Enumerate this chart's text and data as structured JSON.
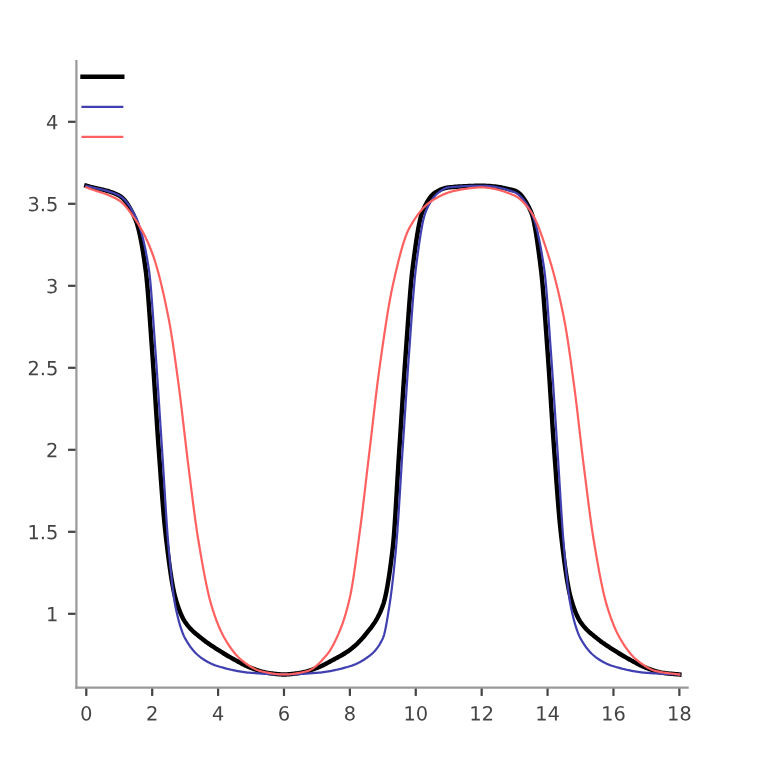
{
  "chart_data": {
    "type": "line",
    "grid": false,
    "marker": "none",
    "line_style": "solid",
    "xlim": [
      -0.3,
      18.25
    ],
    "ylim": [
      0.55,
      4.37
    ],
    "xticks": [
      0,
      2,
      4,
      6,
      8,
      10,
      12,
      14,
      16,
      18
    ],
    "yticks": [
      1,
      1.5,
      2,
      2.5,
      3,
      3.5,
      4
    ],
    "series": [
      {
        "color": "#000000",
        "x": [
          0,
          1,
          1.5,
          1.8,
          2.0,
          2.2,
          2.4,
          2.7,
          3,
          3.5,
          4,
          4.5,
          5,
          5.5,
          6,
          6.5,
          7,
          7.5,
          8,
          8.5,
          9,
          9.3,
          9.5,
          9.7,
          9.9,
          10.2,
          10.6,
          11,
          12,
          13,
          13.5,
          13.8,
          14.0,
          14.2,
          14.4,
          14.7,
          15,
          15.5,
          16,
          16.5,
          17,
          17.5,
          18
        ],
        "values": [
          3.61,
          3.55,
          3.4,
          3.1,
          2.6,
          2.0,
          1.5,
          1.1,
          0.95,
          0.85,
          0.78,
          0.72,
          0.67,
          0.64,
          0.63,
          0.64,
          0.67,
          0.72,
          0.78,
          0.88,
          1.05,
          1.4,
          2.0,
          2.6,
          3.1,
          3.45,
          3.57,
          3.6,
          3.61,
          3.58,
          3.45,
          3.1,
          2.6,
          2.0,
          1.5,
          1.1,
          0.95,
          0.85,
          0.78,
          0.72,
          0.67,
          0.64,
          0.63
        ]
      },
      {
        "color": "#4040b0",
        "x": [
          0,
          1,
          1.5,
          1.9,
          2.1,
          2.3,
          2.5,
          2.7,
          3,
          3.5,
          4,
          5,
          6,
          7,
          8,
          8.5,
          9,
          9.2,
          9.4,
          9.6,
          9.8,
          10,
          10.3,
          10.7,
          11,
          12,
          13,
          13.5,
          13.9,
          14.1,
          14.3,
          14.5,
          14.7,
          15,
          15.5,
          16,
          17,
          18
        ],
        "values": [
          3.61,
          3.55,
          3.42,
          3.1,
          2.6,
          2.0,
          1.4,
          1.05,
          0.85,
          0.73,
          0.68,
          0.64,
          0.63,
          0.64,
          0.68,
          0.73,
          0.85,
          1.05,
          1.4,
          2.0,
          2.6,
          3.1,
          3.45,
          3.57,
          3.6,
          3.61,
          3.57,
          3.45,
          3.1,
          2.6,
          2.0,
          1.4,
          1.05,
          0.85,
          0.73,
          0.68,
          0.64,
          0.63
        ]
      },
      {
        "color": "#ff6060",
        "x": [
          0,
          1,
          1.5,
          2,
          2.5,
          2.8,
          3.1,
          3.4,
          3.8,
          4.2,
          4.7,
          5.3,
          6,
          6.7,
          7.3,
          7.7,
          8.0,
          8.3,
          8.6,
          8.9,
          9.3,
          9.8,
          10.5,
          11.2,
          12,
          13,
          13.5,
          14,
          14.5,
          14.8,
          15.1,
          15.4,
          15.8,
          16.2,
          16.7,
          17.3,
          18
        ],
        "values": [
          3.6,
          3.52,
          3.4,
          3.2,
          2.8,
          2.4,
          1.9,
          1.45,
          1.05,
          0.85,
          0.72,
          0.65,
          0.63,
          0.65,
          0.75,
          0.9,
          1.1,
          1.5,
          2.0,
          2.5,
          3.0,
          3.35,
          3.52,
          3.58,
          3.6,
          3.55,
          3.45,
          3.2,
          2.8,
          2.4,
          1.9,
          1.45,
          1.05,
          0.85,
          0.72,
          0.65,
          0.63
        ]
      }
    ]
  }
}
